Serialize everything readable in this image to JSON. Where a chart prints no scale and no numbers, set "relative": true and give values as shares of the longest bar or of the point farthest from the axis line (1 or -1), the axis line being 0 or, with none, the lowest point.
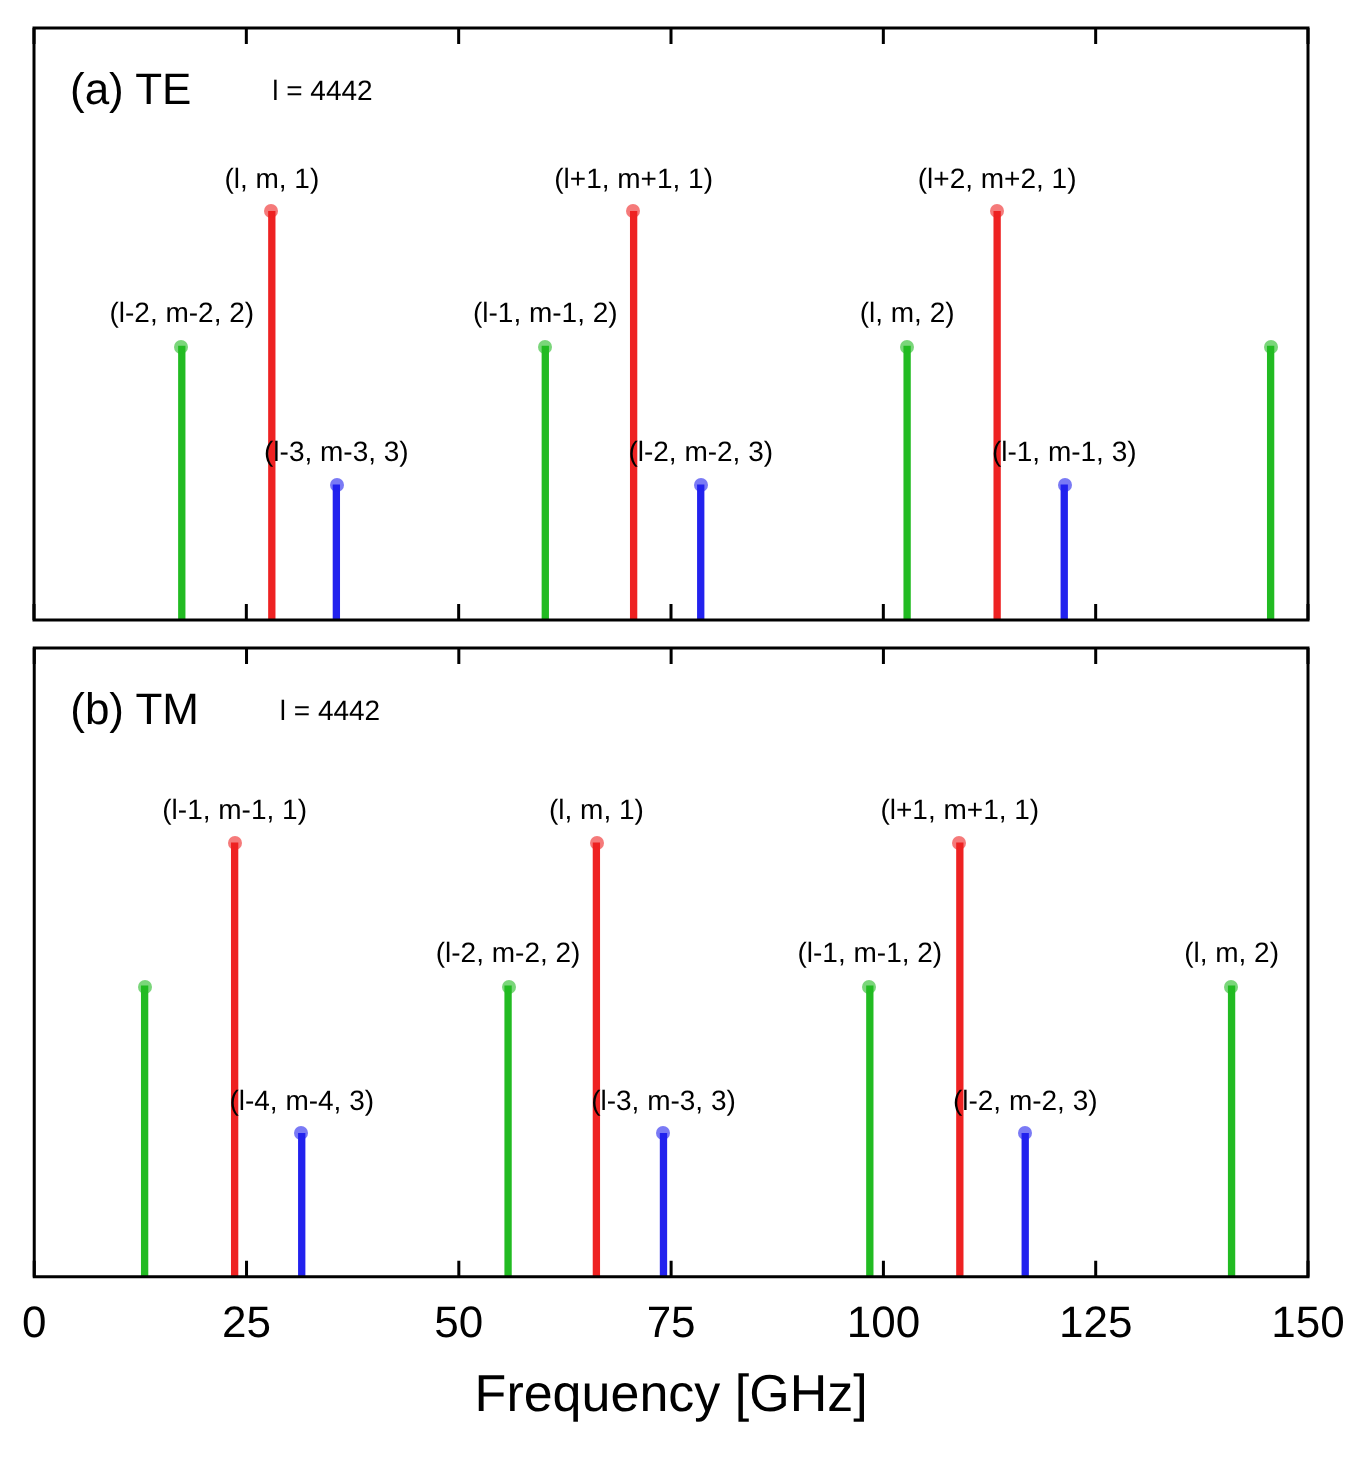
{
  "chart_data": [
    {
      "type": "bar",
      "marker": "circle",
      "title": "(a) TE",
      "relative": true,
      "xlim": [
        0,
        150
      ],
      "xticks": [
        0,
        25,
        50,
        75,
        100,
        125,
        150
      ],
      "tick_labels": false,
      "series": [
        {
          "color": "#22bb22",
          "x": [
            17.4,
            60.2,
            102.8,
            145.6
          ],
          "values": [
            0.67,
            0.67,
            0.67,
            0.67
          ]
        },
        {
          "color": "#ee2222",
          "x": [
            28.0,
            70.6,
            113.4
          ],
          "values": [
            1,
            1,
            1
          ]
        },
        {
          "color": "#2222ee",
          "x": [
            35.6,
            78.5,
            121.3
          ],
          "values": [
            0.33,
            0.33,
            0.33
          ]
        }
      ],
      "annotations": [
        "l = 4442",
        {
          "text": "(l-2, m-2, 2)",
          "x": 17.4,
          "y": 0.67
        },
        {
          "text": "(l, m, 1)",
          "x": 28.0,
          "y": 1
        },
        {
          "text": "(l-3, m-3, 3)",
          "x": 35.6,
          "y": 0.33
        },
        {
          "text": "(l-1, m-1, 2)",
          "x": 60.2,
          "y": 0.67
        },
        {
          "text": "(l+1, m+1, 1)",
          "x": 70.6,
          "y": 1
        },
        {
          "text": "(l-2, m-2, 3)",
          "x": 78.5,
          "y": 0.33
        },
        {
          "text": "(l, m, 2)",
          "x": 102.8,
          "y": 0.67
        },
        {
          "text": "(l+2, m+2, 1)",
          "x": 113.4,
          "y": 1
        },
        {
          "text": "(l-1, m-1, 3)",
          "x": 121.3,
          "y": 0.33
        }
      ]
    },
    {
      "type": "bar",
      "marker": "circle",
      "title": "(b) TM",
      "xlabel": "Frequency [GHz]",
      "relative": true,
      "xlim": [
        0,
        150
      ],
      "xticks": [
        0,
        25,
        50,
        75,
        100,
        125,
        150
      ],
      "tick_labels": "x",
      "series": [
        {
          "color": "#22bb22",
          "x": [
            13.0,
            55.8,
            98.4,
            141.0
          ],
          "values": [
            0.67,
            0.67,
            0.67,
            0.67
          ]
        },
        {
          "color": "#ee2222",
          "x": [
            23.6,
            66.2,
            109.0
          ],
          "values": [
            1,
            1,
            1
          ]
        },
        {
          "color": "#2222ee",
          "x": [
            31.5,
            74.1,
            116.7
          ],
          "values": [
            0.33,
            0.33,
            0.33
          ]
        }
      ],
      "annotations": [
        "l = 4442",
        {
          "text": "(l-1, m-1, 1)",
          "x": 23.6,
          "y": 1
        },
        {
          "text": "(l-4, m-4, 3)",
          "x": 31.5,
          "y": 0.33
        },
        {
          "text": "(l-2, m-2, 2)",
          "x": 55.8,
          "y": 0.67
        },
        {
          "text": "(l, m, 1)",
          "x": 66.2,
          "y": 1
        },
        {
          "text": "(l-3, m-3, 3)",
          "x": 74.1,
          "y": 0.33
        },
        {
          "text": "(l-1, m-1, 2)",
          "x": 98.4,
          "y": 0.67
        },
        {
          "text": "(l+1, m+1, 1)",
          "x": 109.0,
          "y": 1
        },
        {
          "text": "(l-2, m-2, 3)",
          "x": 116.7,
          "y": 0.33
        },
        {
          "text": "(l, m, 2)",
          "x": 141.0,
          "y": 0.67
        }
      ]
    }
  ]
}
